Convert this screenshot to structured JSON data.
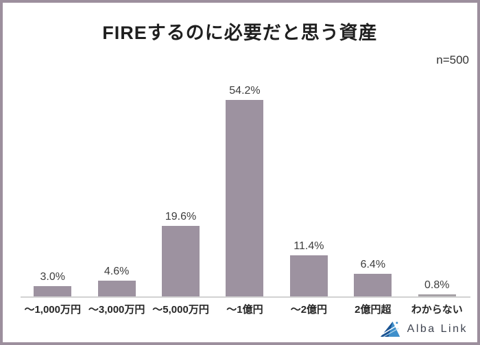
{
  "title": "FIREするのに必要だと思う資産",
  "sample_size": "n=500",
  "logo": {
    "brand": "Alba Link",
    "icon": "alba-link-triangle-icon"
  },
  "chart_data": {
    "type": "bar",
    "title": "FIREするのに必要だと思う資産",
    "subtitle": "n=500",
    "categories": [
      "～1,000万円",
      "～3,000万円",
      "～5,000万円",
      "～1億円",
      "～2億円",
      "2億円超",
      "わからない"
    ],
    "values": [
      3.0,
      4.6,
      19.6,
      54.2,
      11.4,
      6.4,
      0.8
    ],
    "value_labels": [
      "3.0%",
      "4.6%",
      "19.6%",
      "54.2%",
      "11.4%",
      "6.4%",
      "0.8%"
    ],
    "xlabel": "",
    "ylabel": "",
    "ylim": [
      0,
      60
    ],
    "grid": false,
    "legend": false,
    "bar_color": "#9D92A0",
    "last_bar_color": "#A6A1A6",
    "axis_line_color": "#D2D2D2"
  },
  "colors": {
    "frame_border": "#9C8F9D",
    "title_text": "#1F1F1F",
    "sample_text": "#333333",
    "value_label": "#3D3D3D",
    "category_label": "#262626",
    "logo_text": "#3F4450",
    "logo_blue_dark": "#1A5291",
    "logo_blue_light": "#3E8FCB",
    "logo_streak": "#BFE0F2"
  }
}
